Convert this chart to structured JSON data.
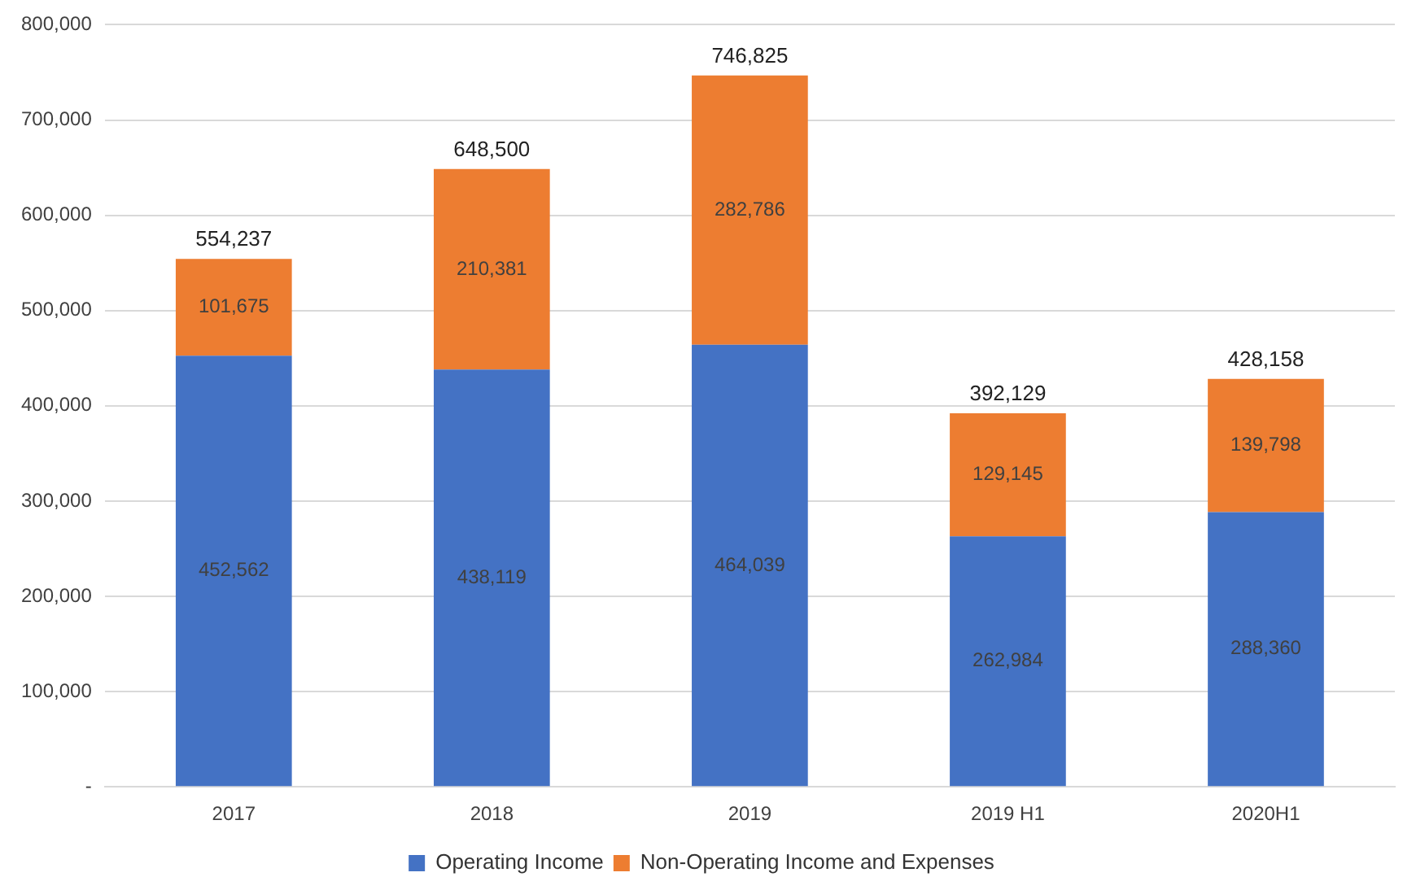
{
  "chart_data": {
    "type": "bar",
    "stacked": true,
    "categories": [
      "2017",
      "2018",
      "2019",
      "2019 H1",
      "2020H1"
    ],
    "series": [
      {
        "name": "Operating Income",
        "color": "#4472c4",
        "values": [
          452562,
          438119,
          464039,
          262984,
          288360
        ],
        "value_labels": [
          "452,562",
          "438,119",
          "464,039",
          "262,984",
          "288,360"
        ]
      },
      {
        "name": "Non-Operating Income and Expenses",
        "color": "#ed7d31",
        "values": [
          101675,
          210381,
          282786,
          129145,
          139798
        ],
        "value_labels": [
          "101,675",
          "210,381",
          "282,786",
          "129,145",
          "139,798"
        ]
      }
    ],
    "totals": [
      "554,237",
      "648,500",
      "746,825",
      "392,129",
      "428,158"
    ],
    "ylim": [
      0,
      800000
    ],
    "yticks": [
      {
        "value": 0,
        "label": "-"
      },
      {
        "value": 100000,
        "label": "100,000"
      },
      {
        "value": 200000,
        "label": "200,000"
      },
      {
        "value": 300000,
        "label": "300,000"
      },
      {
        "value": 400000,
        "label": "400,000"
      },
      {
        "value": 500000,
        "label": "500,000"
      },
      {
        "value": 600000,
        "label": "600,000"
      },
      {
        "value": 700000,
        "label": "700,000"
      },
      {
        "value": 800000,
        "label": "800,000"
      }
    ],
    "grid": "y",
    "legend": "bottom"
  }
}
